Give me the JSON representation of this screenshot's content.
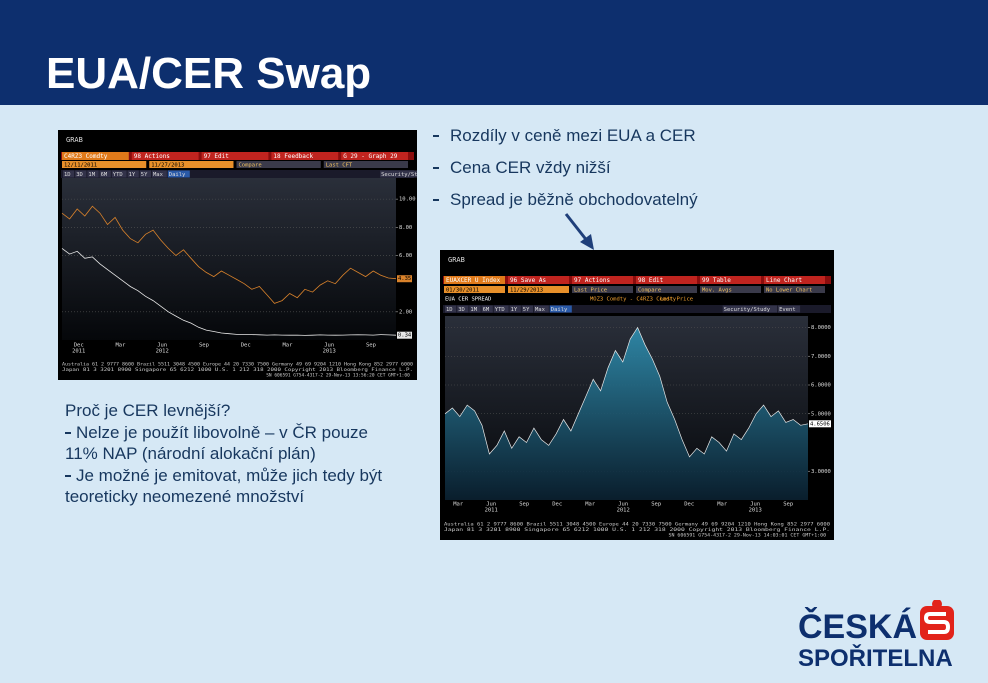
{
  "header": {
    "title": "EUA/CER Swap"
  },
  "bullets": [
    "Rozdíly v ceně mezi EUA a CER",
    "Cena CER vždy nižší",
    "Spread je běžně obchodovatelný"
  ],
  "reason": {
    "question": "Proč je CER levnější?",
    "points": [
      "Nelze je použít libovolně – v ČR pouze 11% NAP (národní alokační plán)",
      "Je možné je emitovat, může jich tedy být teoreticky neomezené množství"
    ]
  },
  "screenshots": [
    {
      "grab": "GRAB",
      "toolbar": [
        "C4RZ3 Comdty",
        "98 Actions",
        "97 Edit",
        "18 Feedback",
        "G 29 - Graph 29"
      ],
      "row2": [
        "12/11/2011",
        "11/27/2013",
        "Compare",
        "Last CFT"
      ],
      "info": [],
      "periods": [
        "1D",
        "3D",
        "1M",
        "6M",
        "YTD",
        "1Y",
        "5Y",
        "Max",
        "Daily",
        "Security/Study"
      ],
      "chart": {
        "type": "line",
        "series": [
          {
            "color": "#d9822b",
            "values": [
              9.0,
              8.6,
              9.3,
              8.8,
              9.5,
              9.0,
              8.2,
              8.7,
              7.8,
              7.2,
              6.9,
              7.5,
              7.8,
              7.1,
              6.5,
              6.0,
              6.4,
              5.8,
              5.2,
              4.8,
              4.5,
              4.9,
              4.6,
              4.3,
              4.0,
              3.6,
              3.8,
              3.2,
              2.6,
              2.8,
              3.3,
              3.0,
              3.6,
              3.4,
              3.9,
              4.2,
              4.0,
              4.6,
              5.1,
              4.8,
              4.5,
              4.9,
              4.6,
              4.4,
              4.35
            ]
          },
          {
            "color": "#e8e8e8",
            "values": [
              6.5,
              6.1,
              6.3,
              5.8,
              5.9,
              5.4,
              5.0,
              4.6,
              4.2,
              3.8,
              3.5,
              3.1,
              2.8,
              2.4,
              2.0,
              1.7,
              1.4,
              1.2,
              0.9,
              0.7,
              0.6,
              0.5,
              0.45,
              0.4,
              0.4,
              0.38,
              0.37,
              0.35,
              0.36,
              0.35,
              0.34,
              0.35,
              0.33,
              0.34,
              0.36,
              0.35,
              0.34,
              0.35,
              0.36,
              0.37,
              0.36,
              0.35,
              0.38,
              0.36,
              0.34
            ]
          }
        ],
        "ylim": [
          0,
          11.5
        ],
        "yticks": [
          {
            "value": 10,
            "label": "10.00"
          },
          {
            "value": 8,
            "label": "8.00"
          },
          {
            "value": 6,
            "label": "6.00"
          },
          {
            "value": 2,
            "label": "2.00"
          }
        ],
        "x_labels": [
          {
            "month": "Dec",
            "year": "2011"
          },
          {
            "month": "Mar",
            "year": null
          },
          {
            "month": "Jun",
            "year": "2012"
          },
          {
            "month": "Sep",
            "year": null
          },
          {
            "month": "Dec",
            "year": null
          },
          {
            "month": "Mar",
            "year": null
          },
          {
            "month": "Jun",
            "year": "2013"
          },
          {
            "month": "Sep",
            "year": null
          }
        ]
      },
      "footer": [
        "Australia 61 2 9777 8600 Brazil 5511 3048 4500 Europe 44 20 7330 7500 Germany 49 69 9204 1210 Hong Kong 852 2977 6000",
        "Japan 81 3 3201 8900      Singapore 65 6212 1000      U.S. 1 212 318 2000      Copyright 2013 Bloomberg Finance L.P.",
        "SN 606591 G754-4317-2 29-Nov-13 13:56:20 CET  GMT+1:00"
      ]
    },
    {
      "grab": "GRAB",
      "toolbar": [
        "EUAXCER U Index",
        "96 Save As",
        "97 Actions",
        "98 Edit",
        "99 Table",
        "Line Chart"
      ],
      "row2": [
        "01/30/2011",
        "11/29/2013",
        "Last Price",
        "Compare",
        "Mov. Avgs",
        "No Lower Chart"
      ],
      "info": [
        "EUA CER SPREAD",
        "MOZ3 Comdty - C4RZ3 Comdty",
        "Last Price"
      ],
      "periods": [
        "1D",
        "3D",
        "1M",
        "6M",
        "YTD",
        "1Y",
        "5Y",
        "Max",
        "Daily",
        "Security/Study",
        "Event"
      ],
      "chart": {
        "type": "area",
        "series": [
          {
            "color": "#2f8fb0",
            "values": [
              5.0,
              5.2,
              4.9,
              5.3,
              5.1,
              4.6,
              3.6,
              3.9,
              4.4,
              3.8,
              4.2,
              4.0,
              4.5,
              4.1,
              3.9,
              4.3,
              4.8,
              4.4,
              5.0,
              5.6,
              6.2,
              5.8,
              6.6,
              7.2,
              6.8,
              7.6,
              8.0,
              7.4,
              6.9,
              6.3,
              5.4,
              4.8,
              4.1,
              3.5,
              3.8,
              3.6,
              4.2,
              4.0,
              3.7,
              4.3,
              4.1,
              4.5,
              5.0,
              5.3,
              4.9,
              5.1,
              4.7,
              4.8,
              4.6,
              4.6506
            ]
          }
        ],
        "ylim": [
          2,
          8.4
        ],
        "yticks": [
          {
            "value": 8,
            "label": "8.0000"
          },
          {
            "value": 7,
            "label": "7.0000"
          },
          {
            "value": 6,
            "label": "6.0000"
          },
          {
            "value": 5,
            "label": "5.0000"
          },
          {
            "value": 3,
            "label": "3.0000"
          }
        ],
        "x_labels": [
          {
            "month": "Mar",
            "year": null
          },
          {
            "month": "Jun",
            "year": "2011"
          },
          {
            "month": "Sep",
            "year": null
          },
          {
            "month": "Dec",
            "year": null
          },
          {
            "month": "Mar",
            "year": null
          },
          {
            "month": "Jun",
            "year": "2012"
          },
          {
            "month": "Sep",
            "year": null
          },
          {
            "month": "Dec",
            "year": null
          },
          {
            "month": "Mar",
            "year": null
          },
          {
            "month": "Jun",
            "year": "2013"
          },
          {
            "month": "Sep",
            "year": null
          }
        ]
      },
      "footer": [
        "Australia 61 2 9777 8600 Brazil 5511 3048 4500 Europe 44 20 7330 7500 Germany 49 69 9204 1210 Hong Kong 852 2977 6000",
        "Japan 81 3 3201 8900      Singapore 65 6212 1000      U.S. 1 212 318 2000      Copyright 2013 Bloomberg Finance L.P.",
        "SN 606591 G754-4317-2 29-Nov-13 14:03:01 CET  GMT+1:00"
      ]
    }
  ],
  "logo": {
    "line1": "ČESKÁ",
    "line2": "SPOŘITELNA"
  }
}
